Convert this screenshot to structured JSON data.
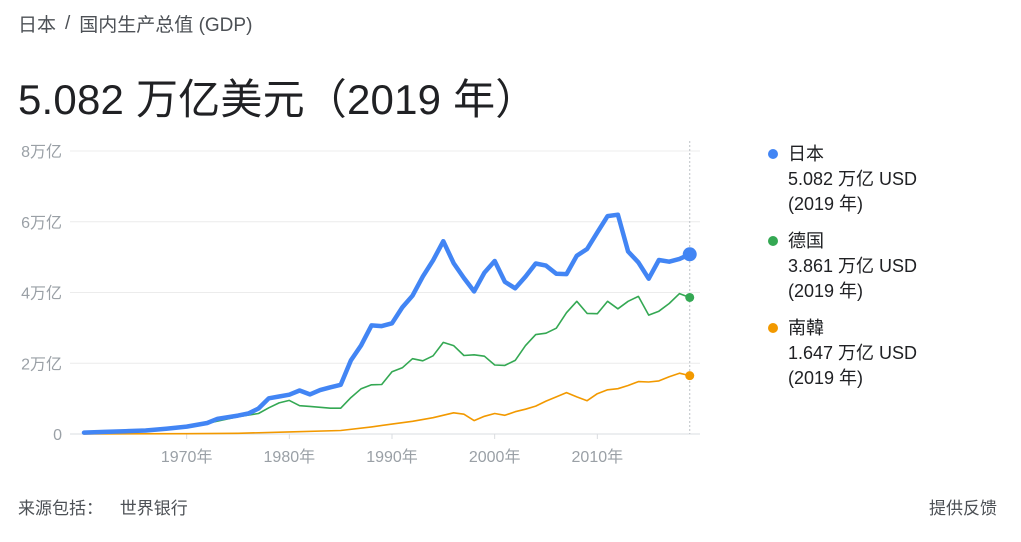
{
  "breadcrumb": {
    "country": "日本",
    "separator": "/",
    "metric": "国内生产总值 (GDP)"
  },
  "headline": "5.082 万亿美元（2019 年）",
  "source": {
    "label": "来源包括：",
    "name": "世界银行"
  },
  "feedback_label": "提供反馈",
  "colors": {
    "japan": "#4285f4",
    "germany": "#34a853",
    "korea": "#f29900",
    "grid": "#ececec",
    "axis_text": "#9aa0a6"
  },
  "legend": [
    {
      "name": "日本",
      "value": "5.082 万亿 USD",
      "year": "(2019 年)",
      "color": "#4285f4"
    },
    {
      "name": "德国",
      "value": "3.861 万亿 USD",
      "year": "(2019 年)",
      "color": "#34a853"
    },
    {
      "name": "南韓",
      "value": "1.647 万亿 USD",
      "year": "(2019 年)",
      "color": "#f29900"
    }
  ],
  "chart_data": {
    "type": "line",
    "xlim": [
      1960,
      2020
    ],
    "ylim": [
      0,
      8
    ],
    "y_ticks": [
      {
        "value": 0,
        "label": "0"
      },
      {
        "value": 2,
        "label": "2万亿"
      },
      {
        "value": 4,
        "label": "4万亿"
      },
      {
        "value": 6,
        "label": "6万亿"
      },
      {
        "value": 8,
        "label": "8万亿"
      }
    ],
    "x_ticks": [
      {
        "value": 1970,
        "label": "1970年"
      },
      {
        "value": 1980,
        "label": "1980年"
      },
      {
        "value": 1990,
        "label": "1990年"
      },
      {
        "value": 2000,
        "label": "2000年"
      },
      {
        "value": 2010,
        "label": "2010年"
      }
    ],
    "grid": true,
    "legend_position": "right",
    "marker_year": 2019,
    "series": [
      {
        "name": "日本",
        "color": "#4285f4",
        "x": [
          1960,
          1962,
          1964,
          1966,
          1968,
          1970,
          1972,
          1973,
          1975,
          1976,
          1977,
          1978,
          1979,
          1980,
          1981,
          1982,
          1983,
          1984,
          1985,
          1986,
          1987,
          1988,
          1989,
          1990,
          1991,
          1992,
          1993,
          1994,
          1995,
          1996,
          1997,
          1998,
          1999,
          2000,
          2001,
          2002,
          2003,
          2004,
          2005,
          2006,
          2007,
          2008,
          2009,
          2010,
          2011,
          2012,
          2013,
          2014,
          2015,
          2016,
          2017,
          2018,
          2019
        ],
        "y": [
          0.04,
          0.06,
          0.08,
          0.1,
          0.15,
          0.21,
          0.31,
          0.43,
          0.52,
          0.58,
          0.72,
          1.01,
          1.06,
          1.11,
          1.23,
          1.12,
          1.24,
          1.32,
          1.39,
          2.08,
          2.51,
          3.07,
          3.05,
          3.13,
          3.58,
          3.91,
          4.45,
          4.91,
          5.45,
          4.83,
          4.41,
          4.03,
          4.56,
          4.89,
          4.3,
          4.12,
          4.45,
          4.82,
          4.76,
          4.53,
          4.52,
          5.04,
          5.23,
          5.7,
          6.16,
          6.2,
          5.16,
          4.85,
          4.39,
          4.92,
          4.87,
          4.95,
          5.08
        ]
      },
      {
        "name": "德国",
        "color": "#34a853",
        "x": [
          1970,
          1972,
          1975,
          1977,
          1978,
          1979,
          1980,
          1981,
          1982,
          1984,
          1985,
          1986,
          1987,
          1988,
          1989,
          1990,
          1991,
          1992,
          1993,
          1994,
          1995,
          1996,
          1997,
          1998,
          1999,
          2000,
          2001,
          2002,
          2003,
          2004,
          2005,
          2006,
          2007,
          2008,
          2009,
          2010,
          2011,
          2012,
          2013,
          2014,
          2015,
          2016,
          2017,
          2018,
          2019
        ],
        "y": [
          0.22,
          0.3,
          0.49,
          0.58,
          0.74,
          0.88,
          0.95,
          0.8,
          0.78,
          0.73,
          0.73,
          1.03,
          1.28,
          1.39,
          1.4,
          1.76,
          1.87,
          2.13,
          2.07,
          2.21,
          2.59,
          2.5,
          2.22,
          2.24,
          2.2,
          1.95,
          1.94,
          2.08,
          2.5,
          2.81,
          2.85,
          2.99,
          3.43,
          3.75,
          3.41,
          3.4,
          3.75,
          3.54,
          3.75,
          3.89,
          3.36,
          3.47,
          3.69,
          3.97,
          3.86
        ]
      },
      {
        "name": "南韓",
        "color": "#f29900",
        "x": [
          1960,
          1970,
          1975,
          1980,
          1985,
          1988,
          1990,
          1992,
          1994,
          1996,
          1997,
          1998,
          1999,
          2000,
          2001,
          2002,
          2003,
          2004,
          2005,
          2006,
          2007,
          2008,
          2009,
          2010,
          2011,
          2012,
          2013,
          2014,
          2015,
          2016,
          2017,
          2018,
          2019
        ],
        "y": [
          0.004,
          0.009,
          0.02,
          0.06,
          0.1,
          0.2,
          0.28,
          0.36,
          0.46,
          0.6,
          0.56,
          0.38,
          0.5,
          0.58,
          0.53,
          0.63,
          0.7,
          0.79,
          0.93,
          1.05,
          1.17,
          1.05,
          0.94,
          1.14,
          1.25,
          1.28,
          1.37,
          1.48,
          1.47,
          1.5,
          1.62,
          1.72,
          1.65
        ]
      }
    ]
  }
}
